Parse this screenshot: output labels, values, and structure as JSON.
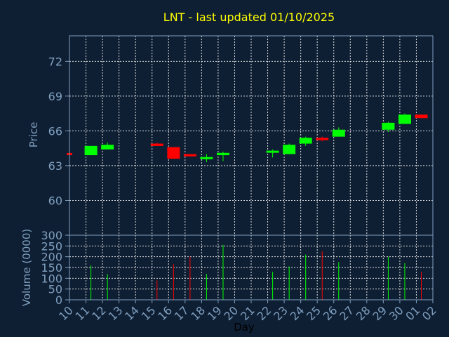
{
  "chart_data": {
    "type": "candlestick",
    "title": "LNT - last updated 01/10/2025",
    "xlabel": "Day",
    "colors": {
      "background": "#0f1f33",
      "axis_text": "#7f9fbf",
      "title": "#ffff00",
      "up": "#00ff00",
      "down": "#ff0000",
      "grid": "#ffffff"
    },
    "x_ticks": [
      "10",
      "11",
      "12",
      "13",
      "14",
      "15",
      "16",
      "17",
      "18",
      "19",
      "20",
      "21",
      "22",
      "23",
      "24",
      "25",
      "26",
      "27",
      "28",
      "29",
      "30",
      "01",
      "02"
    ],
    "price_panel": {
      "ylabel": "Price",
      "ylim": [
        57.0,
        74.2
      ],
      "yticks": [
        60,
        63,
        66,
        69,
        72
      ],
      "grid": true
    },
    "volume_panel": {
      "ylabel": "Volume (0000)",
      "ylim": [
        0,
        300
      ],
      "yticks": [
        0,
        50,
        100,
        150,
        200,
        250,
        300
      ],
      "grid": true
    },
    "candles": [
      {
        "x": 0,
        "open": 64.0,
        "high": 64.0,
        "low": 64.0,
        "close": 64.0,
        "direction": "down",
        "volume": 0
      },
      {
        "x": 1.3,
        "open": 63.9,
        "high": 64.7,
        "low": 63.9,
        "close": 64.7,
        "direction": "up",
        "volume": 160
      },
      {
        "x": 2.3,
        "open": 64.4,
        "high": 65.0,
        "low": 64.4,
        "close": 64.8,
        "direction": "up",
        "volume": 120
      },
      {
        "x": 5.3,
        "open": 64.9,
        "high": 65.0,
        "low": 64.7,
        "close": 64.7,
        "direction": "down",
        "volume": 90
      },
      {
        "x": 6.3,
        "open": 64.6,
        "high": 64.6,
        "low": 63.6,
        "close": 63.6,
        "direction": "down",
        "volume": 165
      },
      {
        "x": 7.3,
        "open": 64.0,
        "high": 64.0,
        "low": 63.8,
        "close": 63.8,
        "direction": "down",
        "volume": 200
      },
      {
        "x": 8.3,
        "open": 63.6,
        "high": 64.0,
        "low": 63.3,
        "close": 63.7,
        "direction": "up",
        "volume": 120
      },
      {
        "x": 9.3,
        "open": 63.9,
        "high": 64.2,
        "low": 63.4,
        "close": 64.1,
        "direction": "up",
        "volume": 255
      },
      {
        "x": 12.3,
        "open": 64.2,
        "high": 64.4,
        "low": 63.7,
        "close": 64.2,
        "direction": "up",
        "volume": 130
      },
      {
        "x": 13.3,
        "open": 64.0,
        "high": 64.9,
        "low": 64.0,
        "close": 64.8,
        "direction": "up",
        "volume": 155
      },
      {
        "x": 14.3,
        "open": 64.9,
        "high": 65.5,
        "low": 64.7,
        "close": 65.4,
        "direction": "up",
        "volume": 210
      },
      {
        "x": 15.3,
        "open": 65.4,
        "high": 65.5,
        "low": 65.1,
        "close": 65.2,
        "direction": "down",
        "volume": 225
      },
      {
        "x": 16.3,
        "open": 65.5,
        "high": 66.3,
        "low": 65.5,
        "close": 66.1,
        "direction": "up",
        "volume": 175
      },
      {
        "x": 19.3,
        "open": 66.1,
        "high": 66.8,
        "low": 65.9,
        "close": 66.7,
        "direction": "up",
        "volume": 200
      },
      {
        "x": 20.3,
        "open": 66.6,
        "high": 67.5,
        "low": 66.6,
        "close": 67.4,
        "direction": "up",
        "volume": 170
      },
      {
        "x": 21.3,
        "open": 67.4,
        "high": 67.4,
        "low": 67.1,
        "close": 67.1,
        "direction": "down",
        "volume": 130
      }
    ]
  }
}
